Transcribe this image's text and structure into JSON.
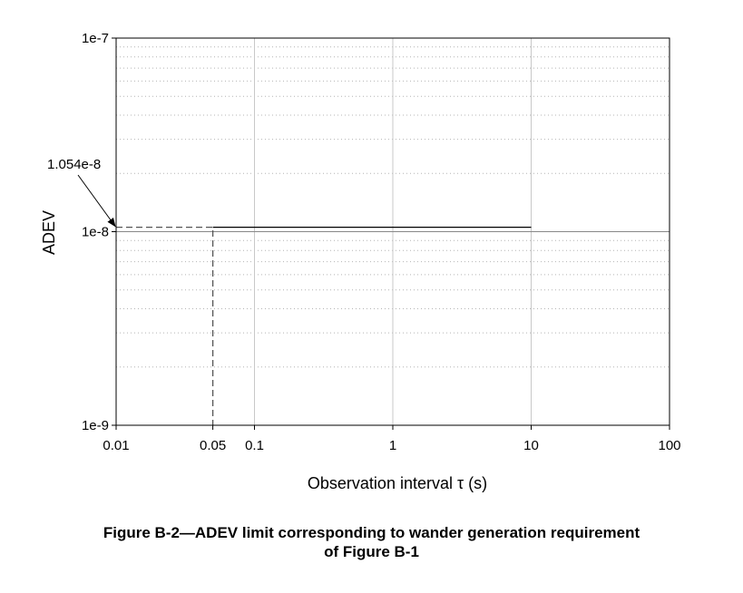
{
  "chart_data": {
    "type": "line",
    "xscale": "log",
    "yscale": "log",
    "xlim": [
      0.01,
      100
    ],
    "ylim": [
      1e-09,
      1e-07
    ],
    "xlabel": "Observation interval τ (s)",
    "ylabel": "ADEV",
    "x_ticks": [
      {
        "value": 0.01,
        "label": "0.01"
      },
      {
        "value": 0.05,
        "label": "0.05"
      },
      {
        "value": 0.1,
        "label": "0.1"
      },
      {
        "value": 1,
        "label": "1"
      },
      {
        "value": 10,
        "label": "10"
      },
      {
        "value": 100,
        "label": "100"
      }
    ],
    "y_ticks": [
      {
        "value": 1e-09,
        "label": "1e-9"
      },
      {
        "value": 1e-08,
        "label": "1e-8"
      },
      {
        "value": 1e-07,
        "label": "1e-7"
      }
    ],
    "x_major_gridlines": [
      0.1,
      1,
      10
    ],
    "y_major_gridlines": [
      1e-08
    ],
    "y_minor_gridlines": "dotted",
    "series": [
      {
        "style": "solid",
        "x": [
          0.05,
          10
        ],
        "y": [
          1.054e-08,
          1.054e-08
        ]
      },
      {
        "style": "dashed",
        "x": [
          0.01,
          0.05,
          0.05
        ],
        "y": [
          1.054e-08,
          1.054e-08,
          1e-09
        ]
      }
    ],
    "annotations": [
      {
        "text": "1.054e-8",
        "points_to": {
          "x": 0.01,
          "y": 1.054e-08
        }
      }
    ],
    "colors": {
      "line": "#000000",
      "major_grid": "#c8c8c8",
      "minor_grid": "#b4b4b4",
      "dashed": "#555555"
    }
  },
  "caption": {
    "line1": "Figure B-2—ADEV limit corresponding to wander generation requirement",
    "line2": "of Figure B-1"
  }
}
